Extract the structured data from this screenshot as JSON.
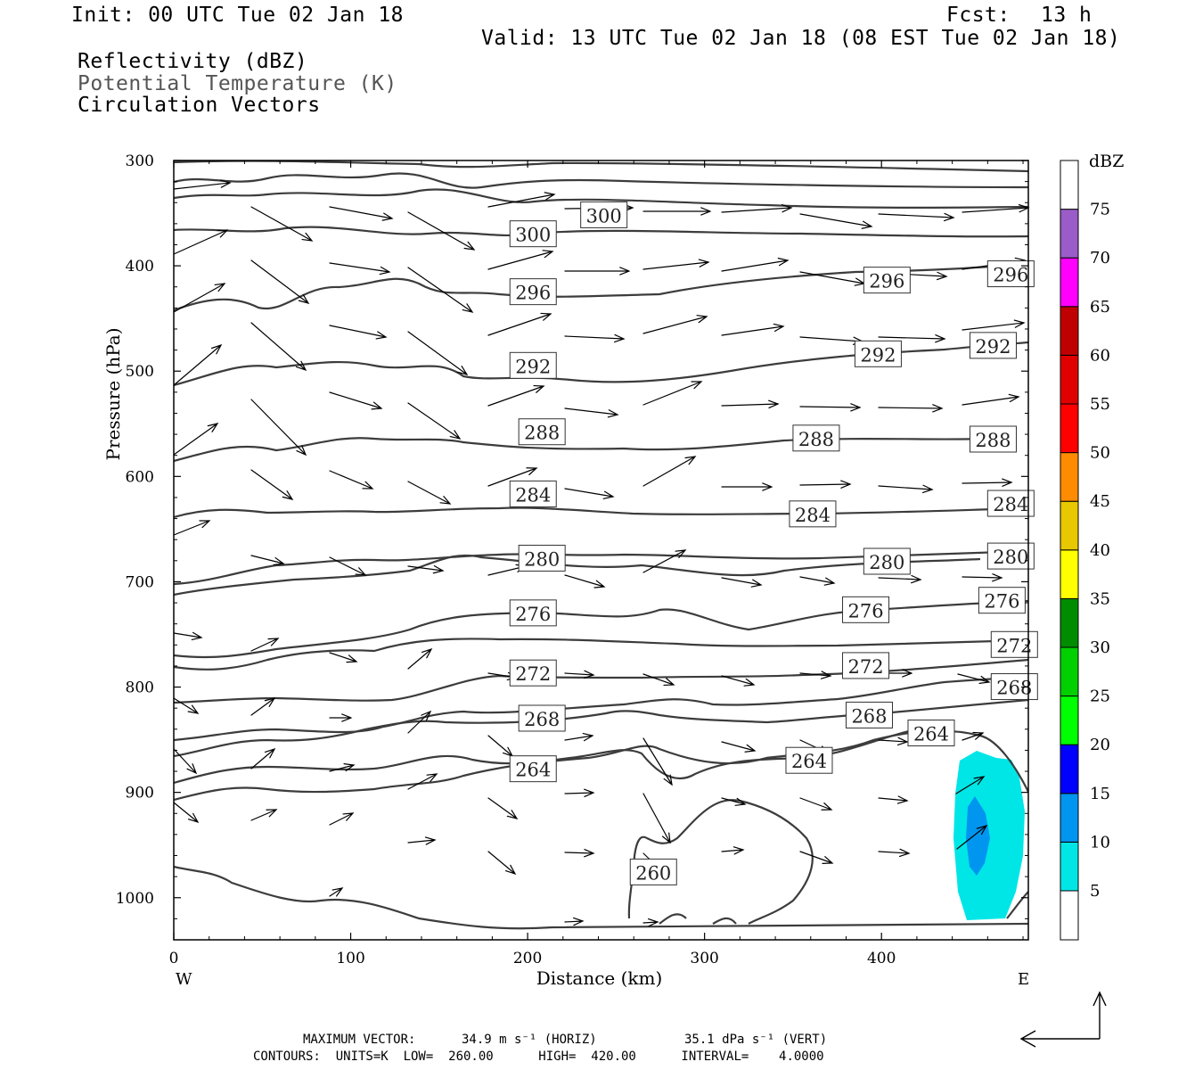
{
  "header": {
    "init": "Init: 00 UTC Tue 02 Jan 18",
    "fcst_label": "Fcst:",
    "fcst_value": "13 h",
    "valid": "Valid: 13 UTC Tue 02 Jan 18 (08 EST Tue 02 Jan 18)",
    "fields": [
      "Reflectivity (dBZ)",
      "Potential Temperature (K)",
      "Circulation Vectors"
    ]
  },
  "footer": {
    "max_vector_label": "MAXIMUM VECTOR:",
    "max_vector_horiz": "34.9 m s⁻¹ (HORIZ)",
    "max_vector_vert": "35.1 dPa s⁻¹ (VERT)",
    "contours": "CONTOURS:  UNITS=K  LOW=  260.00      HIGH=  420.00      INTERVAL=    4.0000"
  },
  "chart_data": {
    "type": "cross-section",
    "xlabel": "Distance (km)",
    "ylabel": "Pressure (hPa)",
    "xlim": [
      0,
      483
    ],
    "ylim": [
      1040,
      300
    ],
    "x_ticks": [
      0,
      100,
      200,
      300,
      400
    ],
    "y_ticks": [
      300,
      400,
      500,
      600,
      700,
      800,
      900,
      1000
    ],
    "x_end_labels": {
      "left": "W",
      "right": "E"
    },
    "colorbar": {
      "title": "dBZ",
      "levels": [
        5,
        10,
        15,
        20,
        25,
        30,
        35,
        40,
        45,
        50,
        55,
        60,
        65,
        70,
        75
      ],
      "colors": [
        "#00e6e6",
        "#0096f0",
        "#0000ff",
        "#00ff00",
        "#00d000",
        "#008c00",
        "#ffff00",
        "#e8c800",
        "#ff8c00",
        "#ff0000",
        "#e00000",
        "#c00000",
        "#ff00ff",
        "#9a5cc8",
        "#ffffff"
      ]
    },
    "theta_contours": [
      {
        "theta": 300,
        "labels": [
          [
            190,
            370
          ],
          [
            230,
            352
          ]
        ]
      },
      {
        "theta": 296,
        "labels": [
          [
            190,
            425
          ],
          [
            390,
            414
          ],
          [
            460,
            408
          ]
        ]
      },
      {
        "theta": 292,
        "labels": [
          [
            190,
            495
          ],
          [
            385,
            484
          ],
          [
            450,
            476
          ]
        ]
      },
      {
        "theta": 288,
        "labels": [
          [
            195,
            558
          ],
          [
            350,
            564
          ],
          [
            450,
            565
          ]
        ]
      },
      {
        "theta": 284,
        "labels": [
          [
            190,
            617
          ],
          [
            348,
            636
          ],
          [
            460,
            626
          ]
        ]
      },
      {
        "theta": 280,
        "labels": [
          [
            195,
            678
          ],
          [
            390,
            681
          ],
          [
            460,
            676
          ]
        ]
      },
      {
        "theta": 276,
        "labels": [
          [
            190,
            730
          ],
          [
            378,
            727
          ],
          [
            455,
            718
          ]
        ]
      },
      {
        "theta": 272,
        "labels": [
          [
            190,
            787
          ],
          [
            378,
            780
          ],
          [
            462,
            760
          ]
        ]
      },
      {
        "theta": 268,
        "labels": [
          [
            195,
            830
          ],
          [
            380,
            827
          ],
          [
            462,
            800
          ]
        ]
      },
      {
        "theta": 264,
        "labels": [
          [
            190,
            878
          ],
          [
            346,
            870
          ],
          [
            415,
            844
          ]
        ]
      },
      {
        "theta": 260,
        "labels": [
          [
            258,
            976
          ]
        ]
      }
    ],
    "reflectivity_area": {
      "dbz_min": 5,
      "dbz_max": 15,
      "x_range": [
        440,
        478
      ],
      "p_range": [
        870,
        1025
      ]
    }
  }
}
